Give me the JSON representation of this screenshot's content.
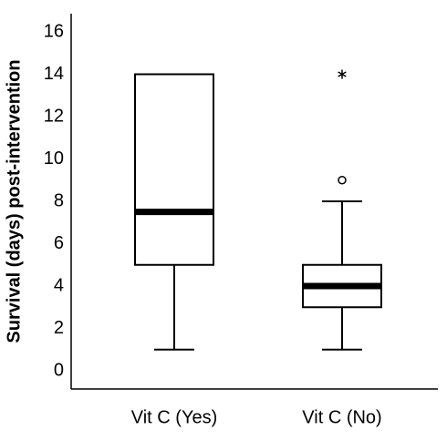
{
  "chart_data": {
    "type": "box",
    "y_label": "Survival (days) post-intervention",
    "categories": [
      "Vit C (Yes)",
      "Vit C (No)"
    ],
    "boxes": [
      {
        "min": 1,
        "q1": 5,
        "median": 7.5,
        "q3": 14,
        "max": 14,
        "outliers": [],
        "extremes": []
      },
      {
        "min": 1,
        "q1": 3,
        "median": 4,
        "q3": 5,
        "max": 8,
        "outliers": [
          9
        ],
        "extremes": [
          14
        ]
      }
    ],
    "ylim": [
      -0.86,
      16.86
    ],
    "yticks": [
      0,
      2,
      4,
      6,
      8,
      10,
      12,
      14,
      16
    ],
    "grid": false
  }
}
